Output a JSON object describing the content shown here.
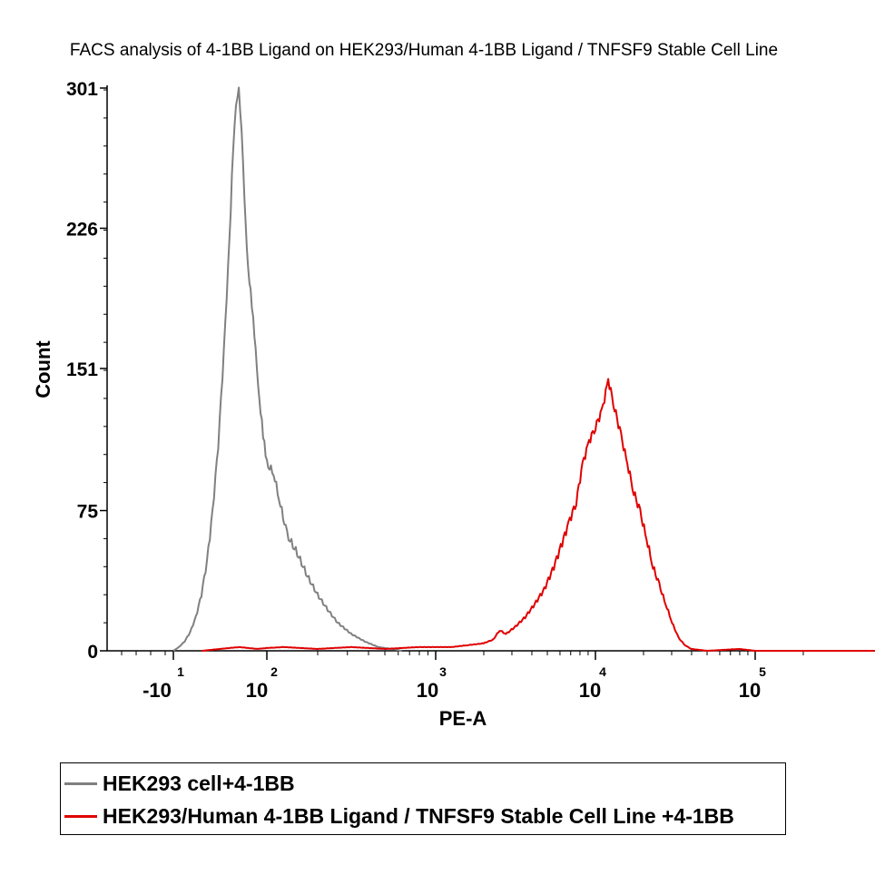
{
  "chart_data": {
    "type": "line",
    "title": "FACS analysis of 4-1BB Ligand on HEK293/Human 4-1BB Ligand / TNFSF9 Stable Cell Line",
    "xlabel": "PE-A",
    "ylabel": "Count",
    "ylim": [
      0,
      301
    ],
    "y_ticks": [
      "0",
      "75",
      "151",
      "226",
      "301"
    ],
    "x_scale": "biexponential",
    "x_ticks": [
      {
        "base": "-10",
        "exp": "1"
      },
      {
        "base": "10",
        "exp": "2"
      },
      {
        "base": "10",
        "exp": "3"
      },
      {
        "base": "10",
        "exp": "4"
      },
      {
        "base": "10",
        "exp": "5"
      }
    ],
    "legend_position": "bottom",
    "series": [
      {
        "name": "HEK293 cell+4-1BB",
        "color": "#808080",
        "points": [
          [
            0,
            0
          ],
          [
            0.06,
            2
          ],
          [
            0.12,
            5
          ],
          [
            0.18,
            10
          ],
          [
            0.24,
            18
          ],
          [
            0.3,
            30
          ],
          [
            0.36,
            48
          ],
          [
            0.42,
            75
          ],
          [
            0.48,
            110
          ],
          [
            0.54,
            160
          ],
          [
            0.6,
            220
          ],
          [
            0.64,
            270
          ],
          [
            0.67,
            290
          ],
          [
            0.7,
            301
          ],
          [
            0.73,
            280
          ],
          [
            0.76,
            240
          ],
          [
            0.8,
            205
          ],
          [
            0.84,
            185
          ],
          [
            0.88,
            160
          ],
          [
            0.92,
            135
          ],
          [
            0.96,
            115
          ],
          [
            1.0,
            100
          ],
          [
            1.04,
            95
          ],
          [
            1.08,
            78
          ],
          [
            1.12,
            62
          ],
          [
            1.18,
            52
          ],
          [
            1.24,
            40
          ],
          [
            1.3,
            30
          ],
          [
            1.36,
            22
          ],
          [
            1.42,
            15
          ],
          [
            1.5,
            9
          ],
          [
            1.58,
            5
          ],
          [
            1.66,
            2
          ],
          [
            1.74,
            1
          ],
          [
            1.8,
            0
          ]
        ]
      },
      {
        "name": "HEK293/Human 4-1BB Ligand / TNFSF9 Stable Cell Line +4-1BB",
        "color": "#e00000",
        "points": [
          [
            0.3,
            0
          ],
          [
            0.5,
            1
          ],
          [
            0.7,
            2
          ],
          [
            0.9,
            1
          ],
          [
            1.1,
            2
          ],
          [
            1.3,
            1
          ],
          [
            1.5,
            2
          ],
          [
            1.7,
            1
          ],
          [
            1.9,
            2
          ],
          [
            2.1,
            2
          ],
          [
            2.2,
            3
          ],
          [
            2.3,
            4
          ],
          [
            2.36,
            6
          ],
          [
            2.4,
            11
          ],
          [
            2.44,
            9
          ],
          [
            2.5,
            13
          ],
          [
            2.56,
            18
          ],
          [
            2.62,
            25
          ],
          [
            2.68,
            33
          ],
          [
            2.74,
            45
          ],
          [
            2.8,
            60
          ],
          [
            2.84,
            70
          ],
          [
            2.88,
            80
          ],
          [
            2.92,
            100
          ],
          [
            2.96,
            112
          ],
          [
            3.0,
            120
          ],
          [
            3.04,
            128
          ],
          [
            3.08,
            145
          ],
          [
            3.12,
            130
          ],
          [
            3.16,
            115
          ],
          [
            3.2,
            100
          ],
          [
            3.24,
            85
          ],
          [
            3.28,
            74
          ],
          [
            3.32,
            60
          ],
          [
            3.36,
            45
          ],
          [
            3.4,
            35
          ],
          [
            3.44,
            25
          ],
          [
            3.48,
            15
          ],
          [
            3.52,
            7
          ],
          [
            3.56,
            3
          ],
          [
            3.6,
            1
          ],
          [
            3.7,
            0
          ],
          [
            3.9,
            1
          ],
          [
            4.0,
            0
          ],
          [
            9.0,
            0
          ]
        ]
      }
    ]
  }
}
